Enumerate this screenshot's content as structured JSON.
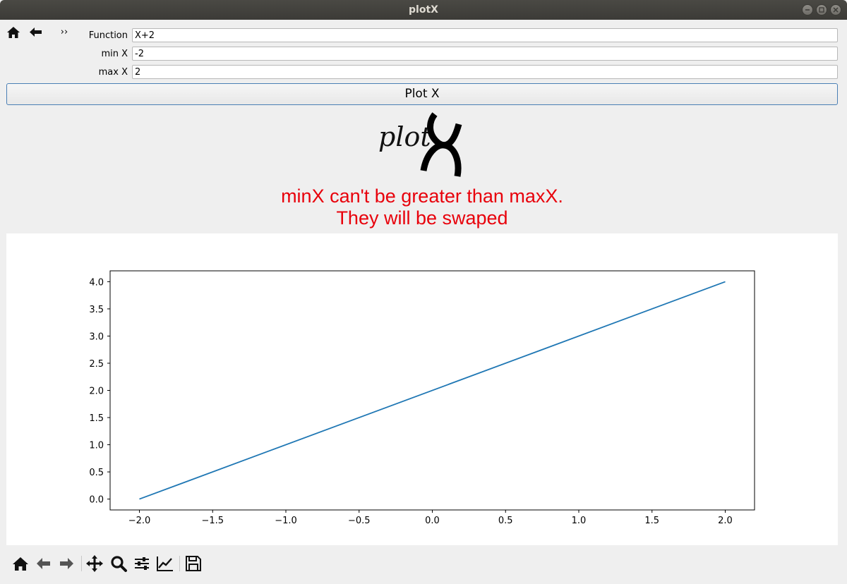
{
  "window": {
    "title": "plotX"
  },
  "form": {
    "function_label": "Function",
    "function_value": "X+2",
    "min_label": "min X",
    "min_value": "-2",
    "max_label": "max X",
    "max_value": "2",
    "plot_button": "Plot X"
  },
  "logo": {
    "text": "plot"
  },
  "warning": {
    "line1": "minX can't be greater than maxX.",
    "line2": "They will be swaped"
  },
  "toolbar_top": {
    "icons": [
      "home-icon",
      "back-arrow-icon",
      "more-chevron-icon"
    ],
    "overflow_glyph": "››"
  },
  "toolbar_bottom": {
    "icons": [
      "home-icon",
      "back-arrow-icon",
      "forward-arrow-icon",
      "pan-move-icon",
      "zoom-magnifier-icon",
      "configure-subplots-icon",
      "edit-axis-icon",
      "save-icon"
    ]
  },
  "colors": {
    "warning": "#e8000b",
    "line": "#1f77b4",
    "button_border": "#4a7fb5"
  },
  "chart_data": {
    "type": "line",
    "title": "",
    "xlabel": "",
    "ylabel": "",
    "x": [
      -2.0,
      2.0
    ],
    "series": [
      {
        "values": [
          0.0,
          4.0
        ]
      }
    ],
    "xlim": [
      -2.2,
      2.2
    ],
    "ylim": [
      -0.2,
      4.2
    ],
    "xticks": [
      -2.0,
      -1.5,
      -1.0,
      -0.5,
      0.0,
      0.5,
      1.0,
      1.5,
      2.0
    ],
    "xtick_labels": [
      "−2.0",
      "−1.5",
      "−1.0",
      "−0.5",
      "0.0",
      "0.5",
      "1.0",
      "1.5",
      "2.0"
    ],
    "yticks": [
      0.0,
      0.5,
      1.0,
      1.5,
      2.0,
      2.5,
      3.0,
      3.5,
      4.0
    ],
    "ytick_labels": [
      "0.0",
      "0.5",
      "1.0",
      "1.5",
      "2.0",
      "2.5",
      "3.0",
      "3.5",
      "4.0"
    ],
    "grid": false,
    "legend": "none"
  }
}
